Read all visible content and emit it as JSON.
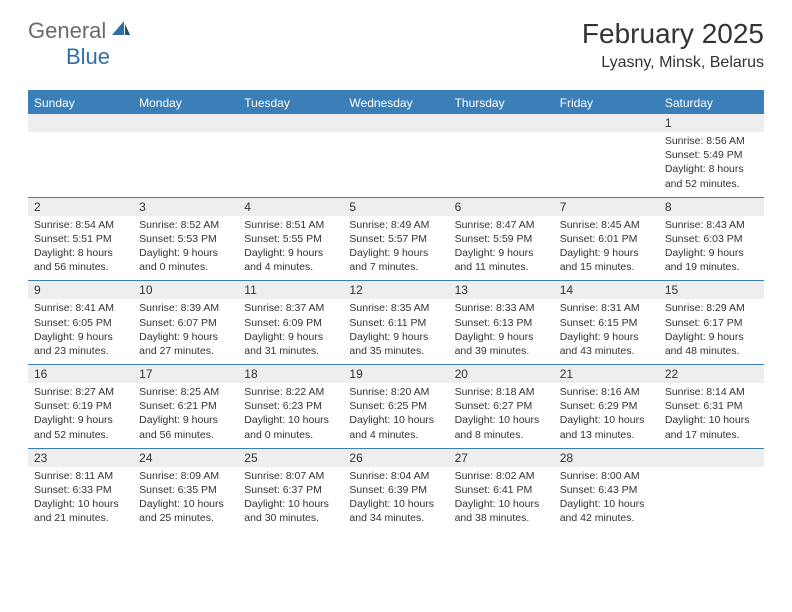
{
  "logo": {
    "general": "General",
    "blue": "Blue"
  },
  "title": "February 2025",
  "location": "Lyasny, Minsk, Belarus",
  "colors": {
    "header_bar": "#3b7fb8",
    "band": "#eeeeee",
    "text": "#333333",
    "logo_gray": "#6a6a6a",
    "logo_blue": "#2f6fa8"
  },
  "day_headers": [
    "Sunday",
    "Monday",
    "Tuesday",
    "Wednesday",
    "Thursday",
    "Friday",
    "Saturday"
  ],
  "weeks": [
    {
      "nums": [
        "",
        "",
        "",
        "",
        "",
        "",
        "1"
      ],
      "details": [
        "",
        "",
        "",
        "",
        "",
        "",
        "Sunrise: 8:56 AM\nSunset: 5:49 PM\nDaylight: 8 hours and 52 minutes."
      ]
    },
    {
      "nums": [
        "2",
        "3",
        "4",
        "5",
        "6",
        "7",
        "8"
      ],
      "details": [
        "Sunrise: 8:54 AM\nSunset: 5:51 PM\nDaylight: 8 hours and 56 minutes.",
        "Sunrise: 8:52 AM\nSunset: 5:53 PM\nDaylight: 9 hours and 0 minutes.",
        "Sunrise: 8:51 AM\nSunset: 5:55 PM\nDaylight: 9 hours and 4 minutes.",
        "Sunrise: 8:49 AM\nSunset: 5:57 PM\nDaylight: 9 hours and 7 minutes.",
        "Sunrise: 8:47 AM\nSunset: 5:59 PM\nDaylight: 9 hours and 11 minutes.",
        "Sunrise: 8:45 AM\nSunset: 6:01 PM\nDaylight: 9 hours and 15 minutes.",
        "Sunrise: 8:43 AM\nSunset: 6:03 PM\nDaylight: 9 hours and 19 minutes."
      ]
    },
    {
      "nums": [
        "9",
        "10",
        "11",
        "12",
        "13",
        "14",
        "15"
      ],
      "details": [
        "Sunrise: 8:41 AM\nSunset: 6:05 PM\nDaylight: 9 hours and 23 minutes.",
        "Sunrise: 8:39 AM\nSunset: 6:07 PM\nDaylight: 9 hours and 27 minutes.",
        "Sunrise: 8:37 AM\nSunset: 6:09 PM\nDaylight: 9 hours and 31 minutes.",
        "Sunrise: 8:35 AM\nSunset: 6:11 PM\nDaylight: 9 hours and 35 minutes.",
        "Sunrise: 8:33 AM\nSunset: 6:13 PM\nDaylight: 9 hours and 39 minutes.",
        "Sunrise: 8:31 AM\nSunset: 6:15 PM\nDaylight: 9 hours and 43 minutes.",
        "Sunrise: 8:29 AM\nSunset: 6:17 PM\nDaylight: 9 hours and 48 minutes."
      ]
    },
    {
      "nums": [
        "16",
        "17",
        "18",
        "19",
        "20",
        "21",
        "22"
      ],
      "details": [
        "Sunrise: 8:27 AM\nSunset: 6:19 PM\nDaylight: 9 hours and 52 minutes.",
        "Sunrise: 8:25 AM\nSunset: 6:21 PM\nDaylight: 9 hours and 56 minutes.",
        "Sunrise: 8:22 AM\nSunset: 6:23 PM\nDaylight: 10 hours and 0 minutes.",
        "Sunrise: 8:20 AM\nSunset: 6:25 PM\nDaylight: 10 hours and 4 minutes.",
        "Sunrise: 8:18 AM\nSunset: 6:27 PM\nDaylight: 10 hours and 8 minutes.",
        "Sunrise: 8:16 AM\nSunset: 6:29 PM\nDaylight: 10 hours and 13 minutes.",
        "Sunrise: 8:14 AM\nSunset: 6:31 PM\nDaylight: 10 hours and 17 minutes."
      ]
    },
    {
      "nums": [
        "23",
        "24",
        "25",
        "26",
        "27",
        "28",
        ""
      ],
      "details": [
        "Sunrise: 8:11 AM\nSunset: 6:33 PM\nDaylight: 10 hours and 21 minutes.",
        "Sunrise: 8:09 AM\nSunset: 6:35 PM\nDaylight: 10 hours and 25 minutes.",
        "Sunrise: 8:07 AM\nSunset: 6:37 PM\nDaylight: 10 hours and 30 minutes.",
        "Sunrise: 8:04 AM\nSunset: 6:39 PM\nDaylight: 10 hours and 34 minutes.",
        "Sunrise: 8:02 AM\nSunset: 6:41 PM\nDaylight: 10 hours and 38 minutes.",
        "Sunrise: 8:00 AM\nSunset: 6:43 PM\nDaylight: 10 hours and 42 minutes.",
        ""
      ]
    }
  ]
}
